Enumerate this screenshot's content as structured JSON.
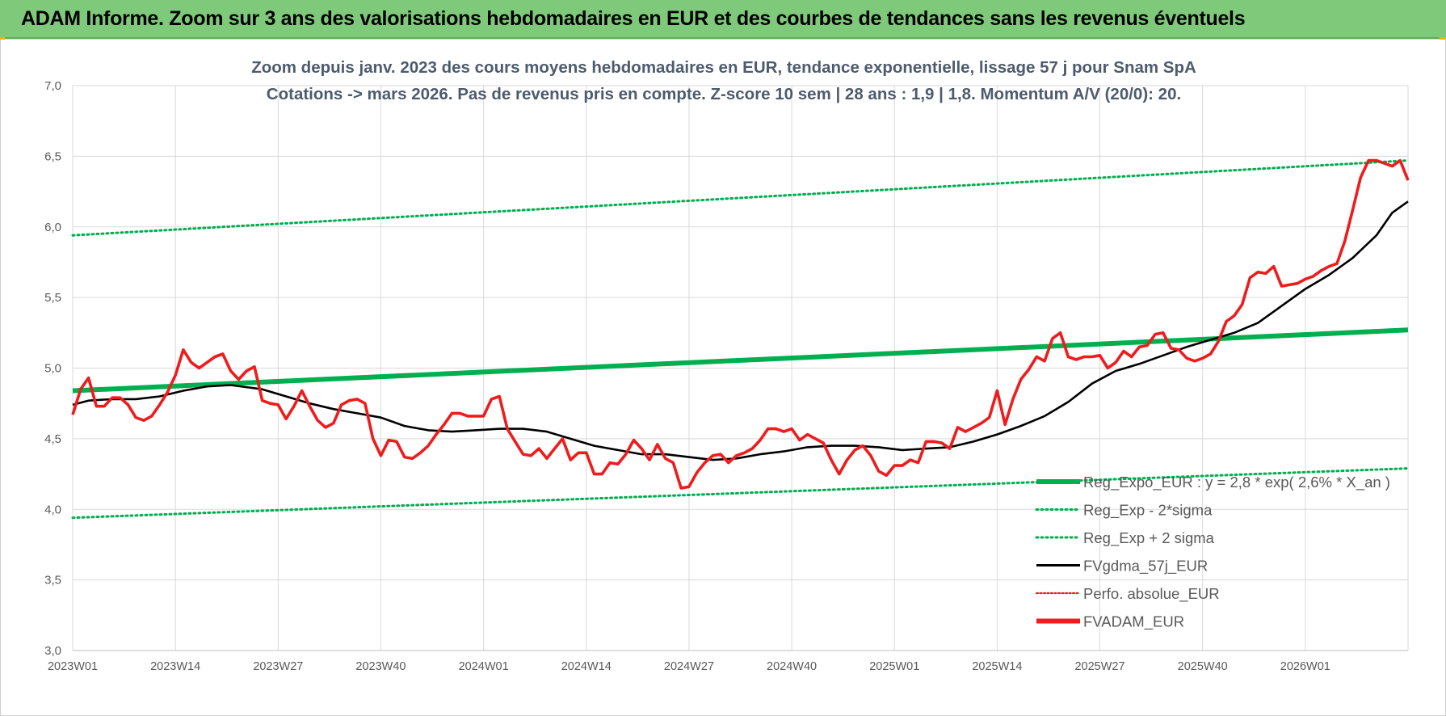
{
  "banner": {
    "title": "ADAM Informe. Zoom sur 3 ans des valorisations hebdomadaires en EUR et des courbes de tendances sans les revenus éventuels"
  },
  "colors": {
    "banner_bg": "#7fc97a",
    "reg_expo": "#00b050",
    "bands": "#00b050",
    "fvgdma": "#000000",
    "fvadam": "#ee1c1c",
    "perfo": "#ee1c1c",
    "grid": "#d9d9d9"
  },
  "chart_data": {
    "type": "line",
    "title_lines": [
      "Zoom depuis janv. 2023 des cours moyens hebdomadaires en EUR, tendance exponentielle, lissage 57 j pour Snam SpA",
      "Cotations -> mars 2026. Pas de revenus pris en compte. Z-score 10 sem | 28 ans : 1,9 | 1,8. Momentum A/V (20/0): 20."
    ],
    "ylim": [
      3.0,
      7.0
    ],
    "y_ticks": [
      "3,0",
      "3,5",
      "4,0",
      "4,5",
      "5,0",
      "5,5",
      "6,0",
      "6,5",
      "7,0"
    ],
    "x_tick_labels": [
      "2023W01",
      "2023W14",
      "2023W27",
      "2023W40",
      "2024W01",
      "2024W14",
      "2024W27",
      "2024W40",
      "2025W01",
      "2025W14",
      "2025W27",
      "2025W40",
      "2026W01"
    ],
    "x_label_step_weeks": 13,
    "n_weeks": 170,
    "grid": true,
    "legend_position": "bottom-right",
    "legend": [
      {
        "key": "reg_expo",
        "label": "Reg_Expo_EUR : y = 2,8 * exp( 2,6% * X_an )",
        "style": "thick-solid",
        "color": "#00b050"
      },
      {
        "key": "reg_minus",
        "label": "Reg_Exp - 2*sigma",
        "style": "dotted",
        "color": "#00b050"
      },
      {
        "key": "reg_plus",
        "label": "Reg_Exp + 2 sigma",
        "style": "dotted",
        "color": "#00b050"
      },
      {
        "key": "fvgdma",
        "label": "FVgdma_57j_EUR",
        "style": "solid",
        "color": "#000000"
      },
      {
        "key": "perfo",
        "label": "Perfo. absolue_EUR",
        "style": "dotted",
        "color": "#ee1c1c"
      },
      {
        "key": "fvadam",
        "label": "FVADAM_EUR",
        "style": "thick-solid",
        "color": "#ee1c1c"
      }
    ],
    "series": [
      {
        "name": "Reg_Expo_EUR : y = 2,8 * exp( 2,6% * X_an )",
        "x": [
          0,
          169
        ],
        "values": [
          4.84,
          5.27
        ]
      },
      {
        "name": "Reg_Exp - 2*sigma",
        "x": [
          0,
          169
        ],
        "values": [
          3.94,
          4.29
        ]
      },
      {
        "name": "Reg_Exp + 2 sigma",
        "x": [
          0,
          169
        ],
        "values": [
          5.94,
          6.47
        ]
      },
      {
        "name": "FVgdma_57j_EUR",
        "x": [
          0,
          2,
          5,
          8,
          11,
          14,
          17,
          20,
          24,
          27,
          30,
          33,
          36,
          39,
          42,
          45,
          48,
          51,
          54,
          57,
          60,
          63,
          66,
          69,
          72,
          75,
          78,
          81,
          84,
          87,
          90,
          93,
          96,
          99,
          102,
          105,
          108,
          111,
          114,
          117,
          120,
          123,
          126,
          129,
          132,
          135,
          138,
          141,
          144,
          147,
          150,
          153,
          156,
          159,
          162,
          165,
          167,
          169
        ],
        "values": [
          4.74,
          4.77,
          4.78,
          4.78,
          4.8,
          4.84,
          4.87,
          4.88,
          4.85,
          4.8,
          4.75,
          4.71,
          4.68,
          4.65,
          4.59,
          4.56,
          4.55,
          4.56,
          4.57,
          4.57,
          4.55,
          4.5,
          4.45,
          4.42,
          4.39,
          4.39,
          4.37,
          4.35,
          4.36,
          4.39,
          4.41,
          4.44,
          4.45,
          4.45,
          4.44,
          4.42,
          4.43,
          4.44,
          4.48,
          4.53,
          4.59,
          4.66,
          4.76,
          4.89,
          4.98,
          5.03,
          5.09,
          5.15,
          5.2,
          5.25,
          5.32,
          5.44,
          5.56,
          5.66,
          5.78,
          5.94,
          6.1,
          6.18
        ]
      },
      {
        "name": "FVADAM_EUR",
        "x": [
          0,
          1,
          2,
          3,
          4,
          5,
          6,
          7,
          8,
          9,
          10,
          11,
          12,
          13,
          14,
          15,
          16,
          17,
          18,
          19,
          20,
          21,
          22,
          23,
          24,
          25,
          26,
          27,
          28,
          29,
          30,
          31,
          32,
          33,
          34,
          35,
          36,
          37,
          38,
          39,
          40,
          41,
          42,
          43,
          44,
          45,
          46,
          47,
          48,
          49,
          50,
          51,
          52,
          53,
          54,
          55,
          56,
          57,
          58,
          59,
          60,
          61,
          62,
          63,
          64,
          65,
          66,
          67,
          68,
          69,
          70,
          71,
          72,
          73,
          74,
          75,
          76,
          77,
          78,
          79,
          80,
          81,
          82,
          83,
          84,
          85,
          86,
          87,
          88,
          89,
          90,
          91,
          92,
          93,
          94,
          95,
          96,
          97,
          98,
          99,
          100,
          101,
          102,
          103,
          104,
          105,
          106,
          107,
          108,
          109,
          110,
          111,
          112,
          113,
          114,
          115,
          116,
          117,
          118,
          119,
          120,
          121,
          122,
          123,
          124,
          125,
          126,
          127,
          128,
          129,
          130,
          131,
          132,
          133,
          134,
          135,
          136,
          137,
          138,
          139,
          140,
          141,
          142,
          143,
          144,
          145,
          146,
          147,
          148,
          149,
          150,
          151,
          152,
          153,
          154,
          155,
          156,
          157,
          158,
          159,
          160,
          161,
          162,
          163,
          164,
          165,
          166,
          167,
          168,
          169
        ],
        "values": [
          4.67,
          4.85,
          4.93,
          4.73,
          4.73,
          4.79,
          4.79,
          4.74,
          4.65,
          4.63,
          4.66,
          4.74,
          4.83,
          4.95,
          5.13,
          5.04,
          5.0,
          5.04,
          5.08,
          5.1,
          4.98,
          4.92,
          4.98,
          5.01,
          4.77,
          4.75,
          4.74,
          4.64,
          4.73,
          4.84,
          4.73,
          4.63,
          4.58,
          4.61,
          4.74,
          4.77,
          4.78,
          4.75,
          4.5,
          4.38,
          4.49,
          4.48,
          4.37,
          4.36,
          4.4,
          4.45,
          4.53,
          4.6,
          4.68,
          4.68,
          4.66,
          4.66,
          4.66,
          4.78,
          4.8,
          4.57,
          4.48,
          4.39,
          4.38,
          4.43,
          4.36,
          4.43,
          4.5,
          4.35,
          4.4,
          4.4,
          4.25,
          4.25,
          4.33,
          4.32,
          4.39,
          4.49,
          4.43,
          4.35,
          4.46,
          4.36,
          4.33,
          4.15,
          4.16,
          4.26,
          4.33,
          4.38,
          4.39,
          4.33,
          4.38,
          4.4,
          4.43,
          4.49,
          4.57,
          4.57,
          4.55,
          4.57,
          4.49,
          4.53,
          4.5,
          4.47,
          4.35,
          4.25,
          4.35,
          4.42,
          4.45,
          4.38,
          4.27,
          4.24,
          4.31,
          4.31,
          4.35,
          4.33,
          4.48,
          4.48,
          4.47,
          4.43,
          4.58,
          4.55,
          4.58,
          4.61,
          4.65,
          4.84,
          4.6,
          4.78,
          4.92,
          4.99,
          5.08,
          5.05,
          5.21,
          5.25,
          5.08,
          5.06,
          5.08,
          5.08,
          5.09,
          5.0,
          5.04,
          5.12,
          5.08,
          5.15,
          5.16,
          5.24,
          5.25,
          5.14,
          5.13,
          5.07,
          5.05,
          5.07,
          5.1,
          5.19,
          5.33,
          5.37,
          5.45,
          5.64,
          5.68,
          5.67,
          5.72,
          5.58,
          5.59,
          5.6,
          5.63,
          5.65,
          5.69,
          5.72,
          5.74,
          5.9,
          6.12,
          6.35,
          6.47,
          6.47,
          6.45,
          6.43,
          6.47,
          6.33
        ]
      }
    ]
  }
}
